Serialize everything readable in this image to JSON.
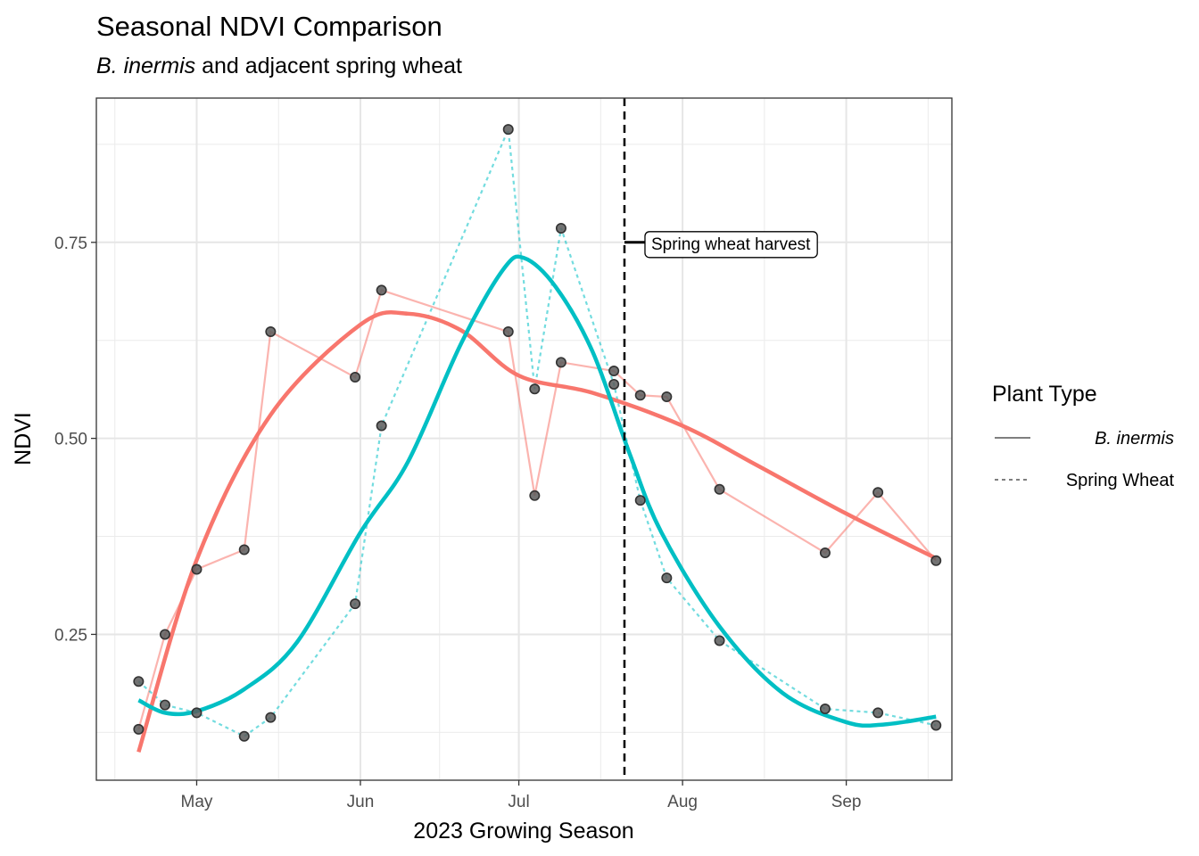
{
  "chart_data": {
    "type": "line",
    "title": "Seasonal NDVI Comparison",
    "subtitle": {
      "italic": "B. inermis",
      "rest": " and adjacent spring wheat"
    },
    "xlabel": "2023 Growing Season",
    "ylabel": "NDVI",
    "xlim": [
      "2023-04-12",
      "2023-09-21"
    ],
    "ylim": [
      0.064,
      0.934
    ],
    "x_ticks": [
      {
        "date": "2023-05-01",
        "label": "May"
      },
      {
        "date": "2023-06-01",
        "label": "Jun"
      },
      {
        "date": "2023-07-01",
        "label": "Jul"
      },
      {
        "date": "2023-08-01",
        "label": "Aug"
      },
      {
        "date": "2023-09-01",
        "label": "Sep"
      }
    ],
    "y_ticks": [
      {
        "value": 0.25,
        "label": "0.25"
      },
      {
        "value": 0.5,
        "label": "0.50"
      },
      {
        "value": 0.75,
        "label": "0.75"
      }
    ],
    "grid": true,
    "legend": {
      "title": "Plant Type",
      "position": "right",
      "entries": [
        {
          "label": "B. inermis",
          "italic": true,
          "linetype": "solid"
        },
        {
          "label": "Spring Wheat",
          "italic": false,
          "linetype": "dotted"
        }
      ]
    },
    "series": [
      {
        "name": "B. inermis",
        "color": "#F8766D",
        "linetype": "solid",
        "points": [
          {
            "x": "2023-04-20",
            "y": 0.129
          },
          {
            "x": "2023-04-25",
            "y": 0.25
          },
          {
            "x": "2023-05-01",
            "y": 0.333
          },
          {
            "x": "2023-05-10",
            "y": 0.358
          },
          {
            "x": "2023-05-15",
            "y": 0.636
          },
          {
            "x": "2023-05-31",
            "y": 0.578
          },
          {
            "x": "2023-06-05",
            "y": 0.689
          },
          {
            "x": "2023-06-29",
            "y": 0.636
          },
          {
            "x": "2023-07-04",
            "y": 0.427
          },
          {
            "x": "2023-07-09",
            "y": 0.597
          },
          {
            "x": "2023-07-19",
            "y": 0.586
          },
          {
            "x": "2023-07-24",
            "y": 0.555
          },
          {
            "x": "2023-07-29",
            "y": 0.553
          },
          {
            "x": "2023-08-08",
            "y": 0.435
          },
          {
            "x": "2023-08-28",
            "y": 0.354
          },
          {
            "x": "2023-09-07",
            "y": 0.431
          },
          {
            "x": "2023-09-18",
            "y": 0.344
          }
        ],
        "trend": [
          {
            "x": "2023-04-20",
            "y": 0.1
          },
          {
            "x": "2023-05-01",
            "y": 0.345
          },
          {
            "x": "2023-05-15",
            "y": 0.53
          },
          {
            "x": "2023-06-01",
            "y": 0.645
          },
          {
            "x": "2023-06-10",
            "y": 0.659
          },
          {
            "x": "2023-06-20",
            "y": 0.638
          },
          {
            "x": "2023-07-01",
            "y": 0.58
          },
          {
            "x": "2023-07-15",
            "y": 0.558
          },
          {
            "x": "2023-08-01",
            "y": 0.516
          },
          {
            "x": "2023-08-15",
            "y": 0.466
          },
          {
            "x": "2023-09-01",
            "y": 0.404
          },
          {
            "x": "2023-09-18",
            "y": 0.347
          }
        ]
      },
      {
        "name": "Spring Wheat",
        "color": "#00BFC4",
        "linetype": "dotted",
        "points": [
          {
            "x": "2023-04-20",
            "y": 0.19
          },
          {
            "x": "2023-04-25",
            "y": 0.16
          },
          {
            "x": "2023-05-01",
            "y": 0.15
          },
          {
            "x": "2023-05-10",
            "y": 0.12
          },
          {
            "x": "2023-05-15",
            "y": 0.144
          },
          {
            "x": "2023-05-31",
            "y": 0.289
          },
          {
            "x": "2023-06-05",
            "y": 0.516
          },
          {
            "x": "2023-06-29",
            "y": 0.894
          },
          {
            "x": "2023-07-04",
            "y": 0.563
          },
          {
            "x": "2023-07-09",
            "y": 0.768
          },
          {
            "x": "2023-07-19",
            "y": 0.569
          },
          {
            "x": "2023-07-24",
            "y": 0.421
          },
          {
            "x": "2023-07-29",
            "y": 0.322
          },
          {
            "x": "2023-08-08",
            "y": 0.242
          },
          {
            "x": "2023-08-28",
            "y": 0.155
          },
          {
            "x": "2023-09-07",
            "y": 0.15
          },
          {
            "x": "2023-09-18",
            "y": 0.134
          }
        ],
        "trend": [
          {
            "x": "2023-04-20",
            "y": 0.166
          },
          {
            "x": "2023-04-25",
            "y": 0.15
          },
          {
            "x": "2023-05-01",
            "y": 0.152
          },
          {
            "x": "2023-05-10",
            "y": 0.18
          },
          {
            "x": "2023-05-20",
            "y": 0.24
          },
          {
            "x": "2023-06-01",
            "y": 0.38
          },
          {
            "x": "2023-06-10",
            "y": 0.47
          },
          {
            "x": "2023-06-20",
            "y": 0.62
          },
          {
            "x": "2023-06-28",
            "y": 0.715
          },
          {
            "x": "2023-07-02",
            "y": 0.73
          },
          {
            "x": "2023-07-08",
            "y": 0.693
          },
          {
            "x": "2023-07-15",
            "y": 0.61
          },
          {
            "x": "2023-07-22",
            "y": 0.48
          },
          {
            "x": "2023-07-28",
            "y": 0.38
          },
          {
            "x": "2023-08-08",
            "y": 0.26
          },
          {
            "x": "2023-08-20",
            "y": 0.175
          },
          {
            "x": "2023-09-01",
            "y": 0.138
          },
          {
            "x": "2023-09-08",
            "y": 0.135
          },
          {
            "x": "2023-09-18",
            "y": 0.145
          }
        ]
      }
    ],
    "annotations": [
      {
        "type": "vline",
        "x": "2023-07-21",
        "style": "dashed",
        "color": "#000000"
      },
      {
        "type": "label",
        "x": "2023-07-21",
        "y": 0.75,
        "text": "Spring wheat harvest"
      }
    ],
    "point_color": "#5a5a5a"
  }
}
